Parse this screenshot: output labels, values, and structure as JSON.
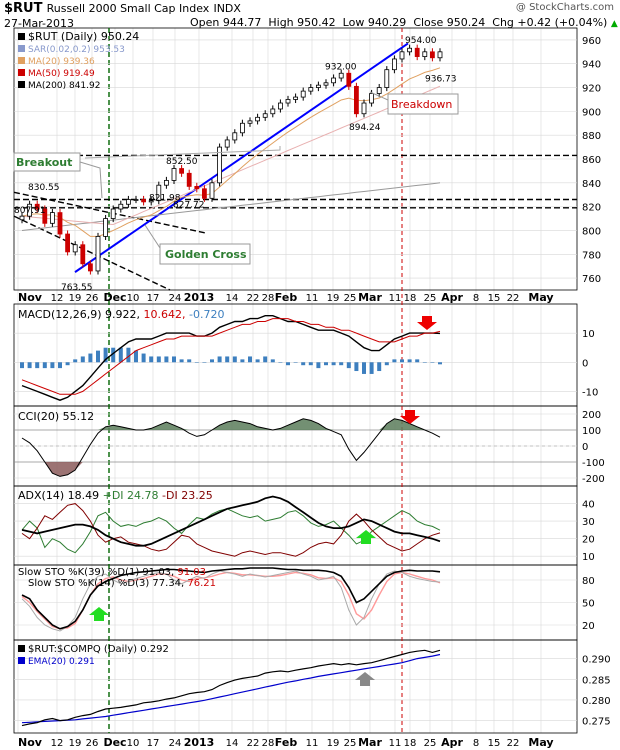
{
  "header": {
    "symbol": "$RUT",
    "name": "Russell 2000 Small Cap Index",
    "exchange": "INDX",
    "date": "27-Mar-2013",
    "open": "Open 944.77",
    "high": "High 950.42",
    "low": "Low 940.29",
    "close": "Close 950.24",
    "chg": "Chg +0.42 (+0.04%)",
    "chg_arrow": "▲",
    "copyright": "@ StockCharts.com"
  },
  "colors": {
    "up": "#000000",
    "down": "#cc0000",
    "trend": "#0000ff",
    "ma20": "#e0a060",
    "ma50": "#cc0000",
    "ma200": "#000000",
    "sar": "#8899cc",
    "hist": "#3d7fbf",
    "breakout_green": "#2e7d32",
    "adx_plus": "#2e7d32",
    "adx_minus": "#800000",
    "slow_sto": "#cc0000",
    "slow_sto2": "#ff9999",
    "ratio": "#000000",
    "ema": "#0000cc",
    "grid": "#d8d8d8"
  },
  "chart_data": {
    "type": "line",
    "x_ticks": [
      "Nov",
      "12",
      "19",
      "26",
      "Dec",
      "10",
      "17",
      "24",
      "2013",
      "14",
      "22",
      "28",
      "Feb",
      "11",
      "19",
      "25",
      "Mar",
      "11",
      "18",
      "25",
      "Apr",
      "8",
      "15",
      "22",
      "May"
    ],
    "price_panel": {
      "legend": [
        {
          "text": "$RUT (Daily) 950.24",
          "color": "#000000"
        },
        {
          "text": "SAR(0.02,0.2) 953.53",
          "color": "#8899cc"
        },
        {
          "text": "MA(20) 939.36",
          "color": "#e0a060"
        },
        {
          "text": "MA(50) 919.49",
          "color": "#cc0000"
        },
        {
          "text": "MA(200) 841.92",
          "color": "#000000"
        }
      ],
      "ylim": [
        750,
        970
      ],
      "y_ticks": [
        760,
        780,
        800,
        820,
        840,
        860,
        880,
        900,
        920,
        940,
        960
      ],
      "closes": [
        812,
        822,
        818,
        806,
        815,
        797,
        782,
        788,
        772,
        766,
        795,
        810,
        818,
        822,
        826,
        826,
        824,
        825,
        838,
        842,
        852,
        848,
        837,
        835,
        827,
        840,
        870,
        876,
        882,
        890,
        892,
        895,
        898,
        902,
        907,
        910,
        912,
        917,
        920,
        922,
        924,
        928,
        932,
        921,
        898,
        907,
        915,
        920,
        935,
        944,
        950,
        953,
        946,
        950,
        945,
        950
      ],
      "annotations": [
        {
          "text": "954.00",
          "value": 954
        },
        {
          "text": "936.73",
          "value": 936.73
        },
        {
          "text": "932.00",
          "value": 932
        },
        {
          "text": "894.24",
          "value": 894.24
        },
        {
          "text": "852.50",
          "value": 852.5
        },
        {
          "text": "830.55",
          "value": 830.55
        },
        {
          "text": "821.98",
          "value": 821.98
        },
        {
          "text": "827.72",
          "value": 827.72
        },
        {
          "text": "807.91",
          "value": 807.91
        },
        {
          "text": "763.55",
          "value": 763.55
        }
      ],
      "callouts": [
        "Breakout",
        "Golden Cross",
        "Breakdown"
      ]
    },
    "macd": {
      "label": "MACD(12,26,9) 9.922, 10.642, -0.720",
      "label_parts": [
        "MACD(12,26,9) 9.922,",
        "10.642,",
        "-0.720"
      ],
      "ylim": [
        -15,
        20
      ],
      "y_ticks": [
        -10,
        0,
        10
      ],
      "macd": [
        -8,
        -9,
        -10,
        -11,
        -12,
        -13,
        -12,
        -10,
        -8,
        -5,
        -2,
        1,
        3,
        5,
        7,
        8,
        8,
        8,
        9,
        10,
        10,
        10,
        10,
        9,
        9,
        10,
        12,
        13,
        14,
        14,
        15,
        15,
        16,
        16,
        15,
        14,
        14,
        13,
        12,
        11,
        11,
        11,
        10,
        9,
        7,
        5,
        4,
        4,
        6,
        8,
        9,
        10,
        10,
        10,
        10,
        9.9
      ],
      "signal": [
        -6,
        -7,
        -8,
        -9,
        -10,
        -11,
        -11,
        -11,
        -10,
        -8,
        -6,
        -4,
        -2,
        0,
        2,
        4,
        5,
        6,
        7,
        8,
        8,
        9,
        9,
        9,
        9,
        9,
        10,
        11,
        12,
        13,
        13,
        14,
        14,
        15,
        15,
        15,
        14,
        14,
        13,
        13,
        12,
        12,
        11,
        11,
        10,
        9,
        8,
        7,
        7,
        7,
        8,
        9,
        9,
        10,
        10,
        10.6
      ]
    },
    "cci": {
      "label": "CCI(20) 55.12",
      "ylim": [
        -250,
        250
      ],
      "y_ticks": [
        -200,
        -100,
        0,
        100,
        200
      ],
      "values": [
        50,
        20,
        -30,
        -100,
        -170,
        -190,
        -180,
        -150,
        -70,
        10,
        80,
        120,
        130,
        120,
        110,
        100,
        100,
        110,
        130,
        150,
        130,
        110,
        80,
        60,
        70,
        100,
        130,
        150,
        160,
        150,
        140,
        120,
        110,
        100,
        110,
        130,
        150,
        170,
        160,
        140,
        110,
        90,
        70,
        -20,
        -90,
        -40,
        20,
        80,
        140,
        170,
        160,
        140,
        120,
        100,
        80,
        55
      ]
    },
    "adx": {
      "label_parts": [
        "ADX(14) 18.49",
        "+DI 24.78",
        "-DI 23.25"
      ],
      "ylim": [
        5,
        50
      ],
      "y_ticks": [
        10,
        20,
        30,
        40
      ],
      "adx": [
        25,
        24,
        23,
        24,
        25,
        26,
        27,
        28,
        28,
        27,
        25,
        22,
        20,
        18,
        17,
        16,
        16,
        17,
        19,
        21,
        23,
        25,
        27,
        29,
        31,
        33,
        35,
        37,
        38,
        39,
        40,
        41,
        43,
        44,
        43,
        41,
        38,
        35,
        32,
        29,
        27,
        26,
        26,
        27,
        29,
        31,
        30,
        28,
        26,
        24,
        23,
        23,
        22,
        21,
        20,
        18.5
      ],
      "plus_di": [
        25,
        30,
        26,
        15,
        20,
        18,
        14,
        12,
        17,
        24,
        33,
        35,
        30,
        27,
        28,
        27,
        29,
        30,
        32,
        30,
        26,
        23,
        28,
        32,
        31,
        34,
        36,
        37,
        35,
        33,
        32,
        33,
        30,
        31,
        32,
        35,
        36,
        33,
        29,
        27,
        28,
        30,
        26,
        22,
        17,
        19,
        24,
        27,
        30,
        33,
        36,
        34,
        30,
        28,
        27,
        24.8
      ],
      "minus_di": [
        23,
        20,
        26,
        33,
        31,
        35,
        39,
        40,
        36,
        30,
        22,
        18,
        20,
        21,
        18,
        17,
        16,
        14,
        13,
        14,
        18,
        22,
        21,
        17,
        15,
        13,
        12,
        11,
        10,
        12,
        13,
        12,
        11,
        12,
        12,
        11,
        10,
        12,
        15,
        17,
        18,
        17,
        22,
        30,
        34,
        30,
        25,
        21,
        17,
        15,
        13,
        14,
        17,
        20,
        22,
        23.3
      ]
    },
    "sto": {
      "label1_parts": [
        "Slow STO %K(39) %D(1) 91.03,",
        "91.03"
      ],
      "label2_parts": [
        "Slow STO %K(14) %D(3) 77.34,",
        "76.21"
      ],
      "ylim": [
        0,
        100
      ],
      "y_ticks": [
        20,
        50,
        80
      ],
      "k39": [
        60,
        55,
        40,
        30,
        20,
        15,
        18,
        25,
        40,
        60,
        72,
        78,
        82,
        86,
        88,
        90,
        91,
        92,
        93,
        94,
        94,
        93,
        92,
        91,
        90,
        92,
        93,
        94,
        95,
        95,
        96,
        96,
        96,
        96,
        95,
        94,
        94,
        93,
        93,
        93,
        92,
        90,
        85,
        70,
        50,
        55,
        65,
        75,
        85,
        90,
        92,
        93,
        92,
        92,
        92,
        91
      ],
      "k14": [
        55,
        45,
        30,
        20,
        15,
        12,
        18,
        30,
        55,
        75,
        85,
        88,
        80,
        75,
        78,
        82,
        85,
        88,
        90,
        88,
        80,
        75,
        80,
        85,
        82,
        88,
        92,
        90,
        88,
        85,
        88,
        86,
        84,
        86,
        88,
        90,
        92,
        88,
        85,
        80,
        82,
        85,
        70,
        40,
        20,
        30,
        55,
        75,
        88,
        92,
        90,
        85,
        82,
        80,
        78,
        77.3
      ],
      "d14": [
        58,
        50,
        38,
        28,
        18,
        15,
        16,
        22,
        40,
        60,
        75,
        82,
        84,
        80,
        78,
        80,
        82,
        85,
        88,
        88,
        85,
        80,
        78,
        82,
        83,
        85,
        88,
        90,
        89,
        87,
        87,
        86,
        85,
        85,
        86,
        88,
        90,
        89,
        87,
        83,
        82,
        83,
        78,
        60,
        35,
        28,
        40,
        60,
        78,
        88,
        90,
        88,
        85,
        82,
        80,
        76.2
      ]
    },
    "ratio": {
      "label": "$RUT:$COMPQ (Daily) 0.292",
      "ema_label": "EMA(20) 0.291",
      "ylim": [
        0.272,
        0.2945
      ],
      "y_ticks": [
        0.275,
        0.28,
        0.285,
        0.29
      ],
      "tick_labels": [
        "0.275",
        "0.280",
        "0.285",
        "0.290"
      ],
      "values": [
        0.2738,
        0.2742,
        0.2745,
        0.2752,
        0.2755,
        0.275,
        0.2752,
        0.2758,
        0.2762,
        0.2765,
        0.2772,
        0.2778,
        0.278,
        0.2782,
        0.2785,
        0.2788,
        0.2793,
        0.2795,
        0.2798,
        0.2802,
        0.2805,
        0.281,
        0.2815,
        0.2818,
        0.282,
        0.2825,
        0.2835,
        0.2842,
        0.2848,
        0.2852,
        0.2855,
        0.2858,
        0.2865,
        0.2868,
        0.287,
        0.2868,
        0.2872,
        0.2875,
        0.2878,
        0.2882,
        0.2885,
        0.2888,
        0.2885,
        0.2888,
        0.2885,
        0.2888,
        0.289,
        0.2895,
        0.29,
        0.2905,
        0.291,
        0.2915,
        0.2918,
        0.292,
        0.2915,
        0.292
      ],
      "ema": [
        0.2745,
        0.2746,
        0.2747,
        0.2748,
        0.2749,
        0.275,
        0.2751,
        0.2752,
        0.2754,
        0.2756,
        0.2758,
        0.276,
        0.2763,
        0.2766,
        0.2769,
        0.2772,
        0.2775,
        0.2778,
        0.2781,
        0.2784,
        0.2787,
        0.279,
        0.2793,
        0.2796,
        0.2799,
        0.2803,
        0.2807,
        0.2811,
        0.2815,
        0.2819,
        0.2823,
        0.2827,
        0.2831,
        0.2835,
        0.2839,
        0.2843,
        0.2846,
        0.285,
        0.2853,
        0.2857,
        0.286,
        0.2863,
        0.2866,
        0.2869,
        0.2872,
        0.2875,
        0.2878,
        0.2881,
        0.2884,
        0.2887,
        0.289,
        0.2895,
        0.29,
        0.2903,
        0.2906,
        0.291
      ]
    }
  }
}
